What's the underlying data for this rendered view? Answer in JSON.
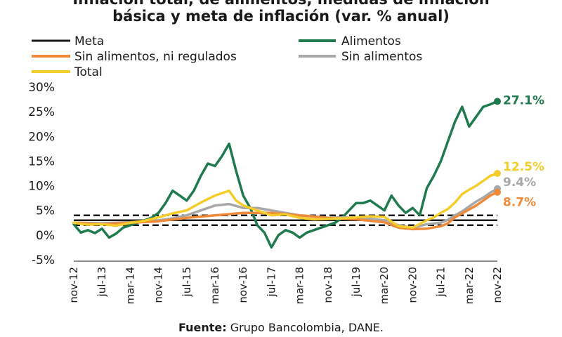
{
  "chart_data": {
    "type": "line",
    "title_lines": [
      "Inflación total, de alimentos, medidas de inflación",
      "básica y meta de inflación (var. % anual)"
    ],
    "xlabel": "",
    "ylabel": "",
    "ylim": [
      -5,
      30
    ],
    "yticks": [
      -5,
      0,
      5,
      10,
      15,
      20,
      25,
      30
    ],
    "ytick_labels": [
      "-5%",
      "0%",
      "5%",
      "10%",
      "15%",
      "20%",
      "25%",
      "30%"
    ],
    "xtick_labels": [
      "nov-12",
      "jul-13",
      "mar-14",
      "nov-14",
      "jul-15",
      "mar-16",
      "nov-16",
      "jul-17",
      "mar-18",
      "nov-18",
      "jul-19",
      "mar-20",
      "nov-20",
      "jul-21",
      "mar-22",
      "nov-22"
    ],
    "xtick_months": [
      0,
      8,
      16,
      24,
      32,
      40,
      48,
      56,
      64,
      72,
      80,
      88,
      96,
      104,
      112,
      120
    ],
    "x_range_months": [
      0,
      120
    ],
    "legend": [
      "Meta",
      "Alimentos",
      "Sin alimentos, ni regulados",
      "Sin alimentos",
      "Total"
    ],
    "meta": {
      "name": "Meta",
      "color": "#1a1a1a",
      "center": 3,
      "band": [
        2,
        4
      ]
    },
    "series": [
      {
        "name": "Alimentos",
        "color": "#1f7a4d",
        "end_label": "27.1%",
        "points": [
          [
            0,
            2.2
          ],
          [
            2,
            0.5
          ],
          [
            4,
            1.0
          ],
          [
            6,
            0.4
          ],
          [
            8,
            1.3
          ],
          [
            10,
            -0.5
          ],
          [
            12,
            0.3
          ],
          [
            14,
            1.5
          ],
          [
            16,
            2.0
          ],
          [
            18,
            2.5
          ],
          [
            20,
            3.0
          ],
          [
            22,
            3.5
          ],
          [
            24,
            4.5
          ],
          [
            26,
            6.5
          ],
          [
            28,
            9.0
          ],
          [
            30,
            8.0
          ],
          [
            32,
            7.0
          ],
          [
            34,
            9.0
          ],
          [
            36,
            12.0
          ],
          [
            38,
            14.5
          ],
          [
            40,
            14.0
          ],
          [
            42,
            16.0
          ],
          [
            44,
            18.5
          ],
          [
            46,
            13.0
          ],
          [
            48,
            8.0
          ],
          [
            50,
            5.5
          ],
          [
            52,
            2.0
          ],
          [
            54,
            0.5
          ],
          [
            56,
            -2.5
          ],
          [
            58,
            0.0
          ],
          [
            60,
            1.0
          ],
          [
            62,
            0.5
          ],
          [
            64,
            -0.5
          ],
          [
            66,
            0.5
          ],
          [
            68,
            1.0
          ],
          [
            70,
            1.5
          ],
          [
            72,
            2.0
          ],
          [
            74,
            2.5
          ],
          [
            76,
            3.5
          ],
          [
            78,
            5.0
          ],
          [
            80,
            6.5
          ],
          [
            82,
            6.5
          ],
          [
            84,
            7.0
          ],
          [
            86,
            6.0
          ],
          [
            88,
            5.0
          ],
          [
            90,
            8.0
          ],
          [
            92,
            6.0
          ],
          [
            94,
            4.5
          ],
          [
            96,
            5.5
          ],
          [
            98,
            4.0
          ],
          [
            100,
            9.5
          ],
          [
            102,
            12.0
          ],
          [
            104,
            15.0
          ],
          [
            106,
            19.0
          ],
          [
            108,
            23.0
          ],
          [
            110,
            26.0
          ],
          [
            112,
            22.0
          ],
          [
            114,
            24.0
          ],
          [
            116,
            26.0
          ],
          [
            118,
            26.5
          ],
          [
            120,
            27.1
          ]
        ]
      },
      {
        "name": "Sin alimentos, ni regulados",
        "color": "#ee8a3a",
        "end_label": "8.7%",
        "points": [
          [
            0,
            2.5
          ],
          [
            8,
            2.2
          ],
          [
            16,
            2.5
          ],
          [
            24,
            2.8
          ],
          [
            32,
            3.5
          ],
          [
            40,
            4.0
          ],
          [
            48,
            4.5
          ],
          [
            56,
            4.5
          ],
          [
            64,
            4.0
          ],
          [
            72,
            3.5
          ],
          [
            80,
            3.2
          ],
          [
            88,
            2.6
          ],
          [
            92,
            1.5
          ],
          [
            96,
            1.2
          ],
          [
            100,
            1.3
          ],
          [
            104,
            1.8
          ],
          [
            106,
            2.4
          ],
          [
            108,
            3.6
          ],
          [
            112,
            5.2
          ],
          [
            114,
            6.0
          ],
          [
            116,
            7.0
          ],
          [
            118,
            8.0
          ],
          [
            120,
            8.7
          ]
        ]
      },
      {
        "name": "Sin alimentos",
        "color": "#a8a8a8",
        "end_label": "9.4%",
        "points": [
          [
            0,
            2.5
          ],
          [
            8,
            2.4
          ],
          [
            16,
            2.6
          ],
          [
            24,
            3.0
          ],
          [
            28,
            3.4
          ],
          [
            32,
            4.0
          ],
          [
            36,
            5.0
          ],
          [
            40,
            6.0
          ],
          [
            44,
            6.3
          ],
          [
            48,
            5.5
          ],
          [
            52,
            5.5
          ],
          [
            56,
            5.0
          ],
          [
            60,
            4.5
          ],
          [
            64,
            4.0
          ],
          [
            68,
            3.8
          ],
          [
            72,
            3.5
          ],
          [
            76,
            3.6
          ],
          [
            80,
            3.5
          ],
          [
            84,
            3.3
          ],
          [
            88,
            3.0
          ],
          [
            92,
            2.0
          ],
          [
            96,
            1.5
          ],
          [
            100,
            2.2
          ],
          [
            104,
            2.5
          ],
          [
            106,
            3.1
          ],
          [
            108,
            4.0
          ],
          [
            110,
            4.8
          ],
          [
            112,
            5.8
          ],
          [
            114,
            6.8
          ],
          [
            116,
            7.6
          ],
          [
            118,
            8.6
          ],
          [
            120,
            9.4
          ]
        ]
      },
      {
        "name": "Total",
        "color": "#f5cd2a",
        "end_label": "12.5%",
        "points": [
          [
            0,
            2.5
          ],
          [
            4,
            2.1
          ],
          [
            8,
            2.2
          ],
          [
            12,
            1.9
          ],
          [
            16,
            2.5
          ],
          [
            20,
            2.9
          ],
          [
            24,
            3.6
          ],
          [
            28,
            4.4
          ],
          [
            32,
            5.0
          ],
          [
            36,
            6.6
          ],
          [
            40,
            8.0
          ],
          [
            44,
            9.0
          ],
          [
            46,
            7.0
          ],
          [
            48,
            6.0
          ],
          [
            52,
            5.0
          ],
          [
            56,
            4.0
          ],
          [
            60,
            4.2
          ],
          [
            64,
            3.5
          ],
          [
            68,
            3.2
          ],
          [
            72,
            3.3
          ],
          [
            76,
            3.4
          ],
          [
            80,
            3.6
          ],
          [
            84,
            3.8
          ],
          [
            88,
            3.7
          ],
          [
            92,
            1.8
          ],
          [
            96,
            1.5
          ],
          [
            100,
            3.0
          ],
          [
            102,
            3.6
          ],
          [
            104,
            4.5
          ],
          [
            106,
            5.3
          ],
          [
            108,
            6.6
          ],
          [
            110,
            8.3
          ],
          [
            112,
            9.2
          ],
          [
            114,
            10.0
          ],
          [
            116,
            11.0
          ],
          [
            118,
            12.0
          ],
          [
            120,
            12.5
          ]
        ]
      }
    ],
    "source_label": "Fuente:",
    "source_text": " Grupo Bancolombia, DANE."
  }
}
